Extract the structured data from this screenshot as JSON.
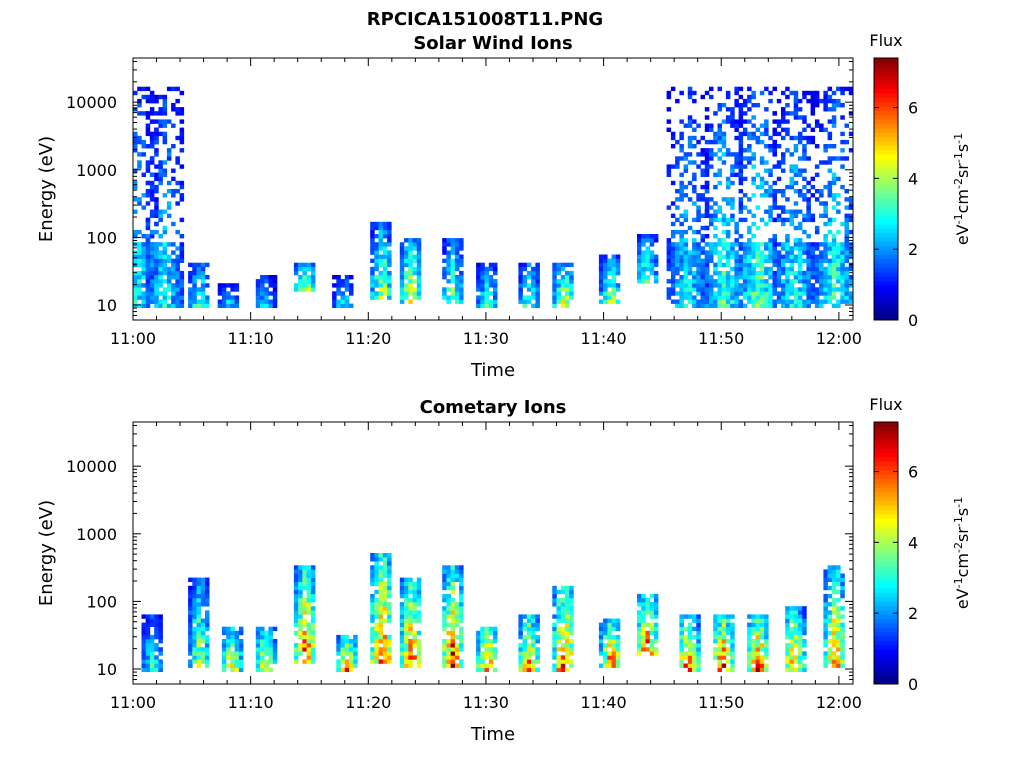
{
  "figure": {
    "title": "RPCICA151008T11.PNG"
  },
  "chart_data": [
    {
      "type": "heatmap",
      "title": "Solar Wind Ions",
      "xlabel": "Time",
      "ylabel": "Energy (eV)",
      "x_ticks": [
        "11:00",
        "11:10",
        "11:20",
        "11:30",
        "11:40",
        "11:50",
        "12:00"
      ],
      "x_range_minutes": [
        0,
        61.2
      ],
      "y_scale": "log",
      "y_ticks": [
        "10",
        "100",
        "1000",
        "10000"
      ],
      "y_range": [
        6,
        45000
      ],
      "colorbar": {
        "title": "Flux",
        "label": "eV-1cm-2sr-1s-1",
        "ticks": [
          "0",
          "2",
          "4",
          "6"
        ],
        "range": [
          0,
          7.4
        ],
        "colormap": "jet"
      },
      "bursts": [
        {
          "t": 0.2,
          "e_min": 8,
          "e_max": 15000,
          "peak": 3.0
        },
        {
          "t": 2.5,
          "e_min": 8,
          "e_max": 15000,
          "peak": 3.0
        },
        {
          "t": 5.5,
          "e_min": 8,
          "e_max": 40,
          "peak": 4.0
        },
        {
          "t": 8.0,
          "e_min": 8,
          "e_max": 20,
          "peak": 3.0
        },
        {
          "t": 11.0,
          "e_min": 8,
          "e_max": 25,
          "peak": 3.0
        },
        {
          "t": 14.5,
          "e_min": 15,
          "e_max": 40,
          "peak": 4.8
        },
        {
          "t": 17.8,
          "e_min": 8,
          "e_max": 25,
          "peak": 3.2
        },
        {
          "t": 21.0,
          "e_min": 12,
          "e_max": 150,
          "peak": 4.5
        },
        {
          "t": 23.5,
          "e_min": 10,
          "e_max": 90,
          "peak": 5.2
        },
        {
          "t": 27.0,
          "e_min": 10,
          "e_max": 90,
          "peak": 4.0
        },
        {
          "t": 30.0,
          "e_min": 8,
          "e_max": 40,
          "peak": 3.6
        },
        {
          "t": 33.5,
          "e_min": 8,
          "e_max": 40,
          "peak": 3.8
        },
        {
          "t": 36.5,
          "e_min": 8,
          "e_max": 40,
          "peak": 5.0
        },
        {
          "t": 40.5,
          "e_min": 10,
          "e_max": 50,
          "peak": 4.2
        },
        {
          "t": 43.5,
          "e_min": 20,
          "e_max": 100,
          "peak": 4.0
        },
        {
          "t": 47.0,
          "e_min": 8,
          "e_max": 15000,
          "peak": 3.0
        },
        {
          "t": 50.0,
          "e_min": 8,
          "e_max": 15000,
          "peak": 3.5
        },
        {
          "t": 53.0,
          "e_min": 8,
          "e_max": 15000,
          "peak": 3.8
        },
        {
          "t": 56.0,
          "e_min": 8,
          "e_max": 15000,
          "peak": 3.2
        },
        {
          "t": 59.5,
          "e_min": 8,
          "e_max": 15000,
          "peak": 3.4
        }
      ]
    },
    {
      "type": "heatmap",
      "title": "Cometary Ions",
      "xlabel": "Time",
      "ylabel": "Energy (eV)",
      "x_ticks": [
        "11:00",
        "11:10",
        "11:20",
        "11:30",
        "11:40",
        "11:50",
        "12:00"
      ],
      "x_range_minutes": [
        0,
        61.2
      ],
      "y_scale": "log",
      "y_ticks": [
        "10",
        "100",
        "1000",
        "10000"
      ],
      "y_range": [
        6,
        45000
      ],
      "colorbar": {
        "title": "Flux",
        "label": "eV-1cm-2sr-1s-1",
        "ticks": [
          "0",
          "2",
          "4",
          "6"
        ],
        "range": [
          0,
          7.4
        ],
        "colormap": "jet"
      },
      "bursts": [
        {
          "t": 1.5,
          "e_min": 8,
          "e_max": 60,
          "peak": 3.5
        },
        {
          "t": 5.5,
          "e_min": 10,
          "e_max": 200,
          "peak": 4.5
        },
        {
          "t": 8.2,
          "e_min": 8,
          "e_max": 40,
          "peak": 5.5
        },
        {
          "t": 11.0,
          "e_min": 8,
          "e_max": 40,
          "peak": 5.5
        },
        {
          "t": 14.5,
          "e_min": 12,
          "e_max": 300,
          "peak": 6.5
        },
        {
          "t": 18.0,
          "e_min": 8,
          "e_max": 30,
          "peak": 6.2
        },
        {
          "t": 21.0,
          "e_min": 12,
          "e_max": 500,
          "peak": 6.8
        },
        {
          "t": 23.5,
          "e_min": 10,
          "e_max": 200,
          "peak": 6.5
        },
        {
          "t": 27.0,
          "e_min": 10,
          "e_max": 300,
          "peak": 6.8
        },
        {
          "t": 30.0,
          "e_min": 8,
          "e_max": 40,
          "peak": 6.5
        },
        {
          "t": 33.5,
          "e_min": 8,
          "e_max": 60,
          "peak": 6.0
        },
        {
          "t": 36.5,
          "e_min": 8,
          "e_max": 150,
          "peak": 7.0
        },
        {
          "t": 40.5,
          "e_min": 10,
          "e_max": 50,
          "peak": 6.5
        },
        {
          "t": 43.5,
          "e_min": 15,
          "e_max": 120,
          "peak": 6.8
        },
        {
          "t": 47.0,
          "e_min": 8,
          "e_max": 60,
          "peak": 6.8
        },
        {
          "t": 50.0,
          "e_min": 8,
          "e_max": 60,
          "peak": 7.0
        },
        {
          "t": 53.0,
          "e_min": 8,
          "e_max": 60,
          "peak": 7.0
        },
        {
          "t": 56.0,
          "e_min": 8,
          "e_max": 80,
          "peak": 6.2
        },
        {
          "t": 59.5,
          "e_min": 10,
          "e_max": 300,
          "peak": 6.0
        }
      ]
    }
  ]
}
